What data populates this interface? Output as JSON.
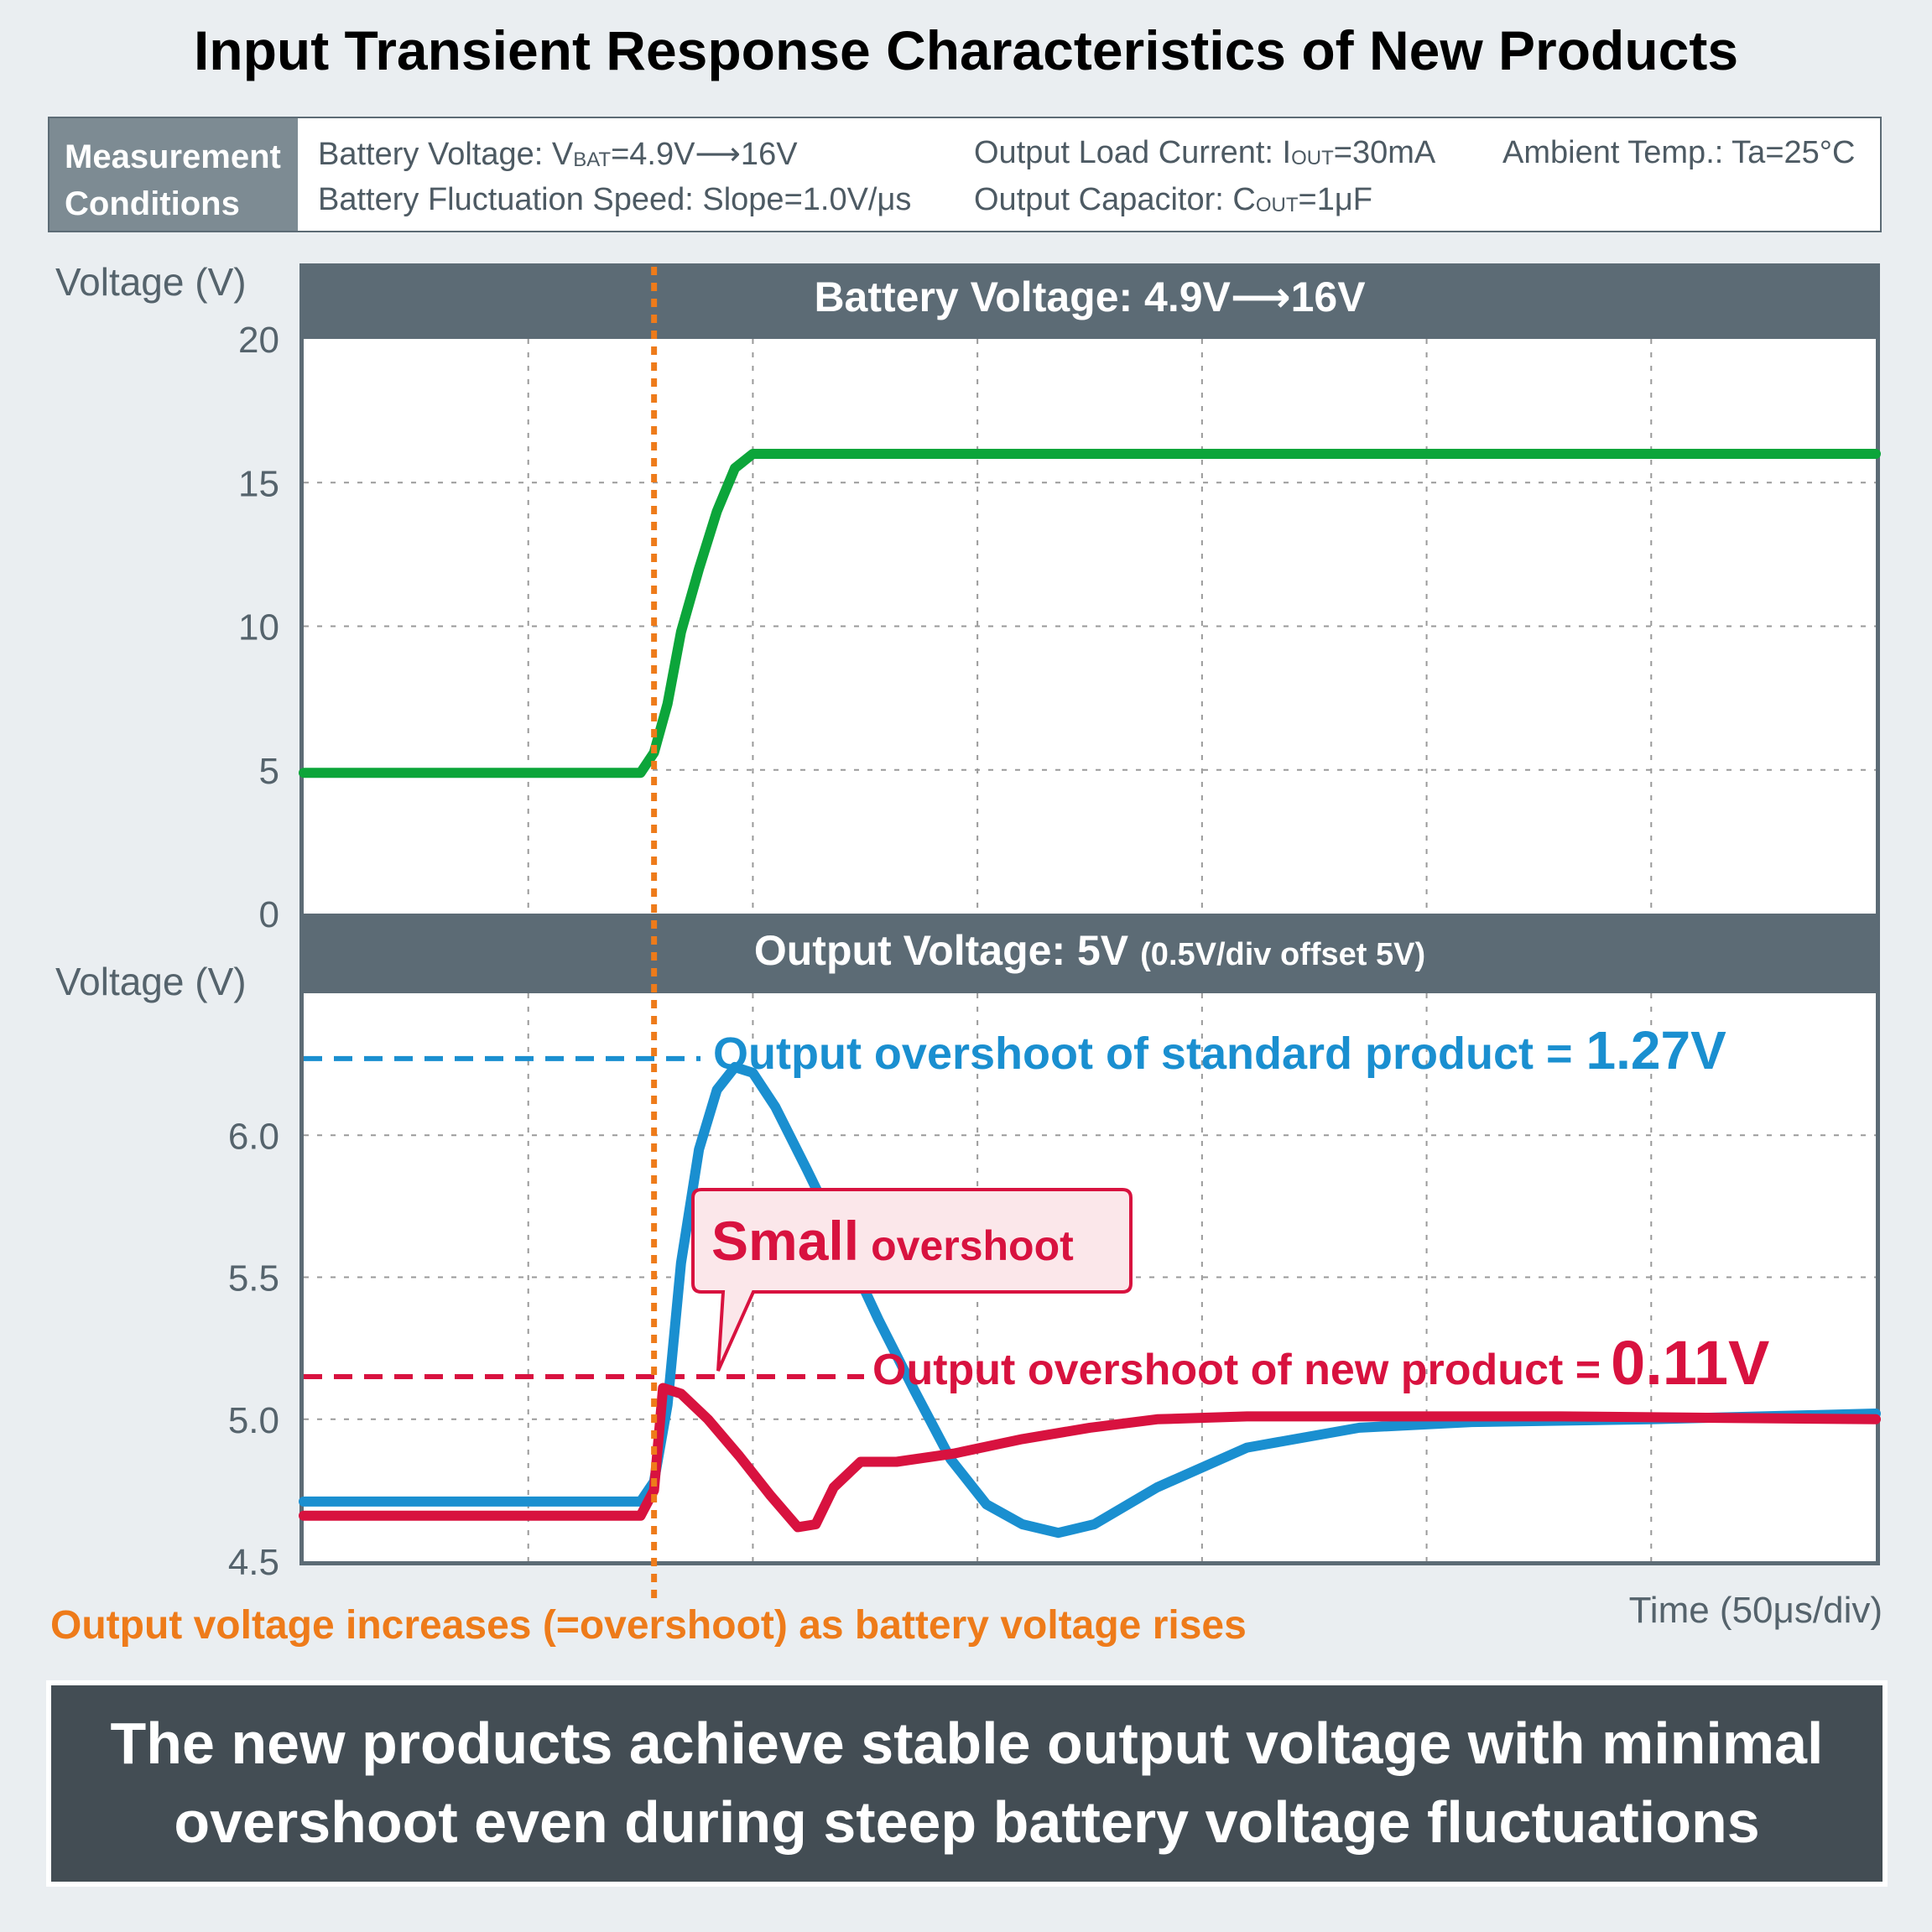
{
  "title": "Input Transient Response Characteristics of New Products",
  "conditions": {
    "header_line1": "Measurement",
    "header_line2": "Conditions",
    "battery_voltage_a": "Battery Voltage: V",
    "battery_voltage_sub": "BAT",
    "battery_voltage_b": "=4.9V⟶16V",
    "slope": "Battery Fluctuation Speed: Slope=1.0V/μs",
    "load_a": "Output Load Current: I",
    "load_sub": "OUT",
    "load_b": "=30mA",
    "cap_a": "Output Capacitor: C",
    "cap_sub": "OUT",
    "cap_b": "=1μF",
    "temp": "Ambient Temp.: Ta=25°C"
  },
  "chart_data": [
    {
      "type": "line",
      "panel_title": "Battery Voltage: 4.9V⟶16V",
      "ylabel": "Voltage (V)",
      "ylim": [
        0,
        20
      ],
      "yticks": [
        "0",
        "5",
        "10",
        "15",
        "20"
      ],
      "x_unit": "μs",
      "xlim": [
        0,
        350
      ],
      "grid": true,
      "series": [
        {
          "name": "Battery voltage",
          "color": "#0ca53a",
          "x": [
            0,
            75,
            78,
            81,
            84,
            88,
            92,
            96,
            100,
            350
          ],
          "y": [
            4.9,
            4.9,
            5.6,
            7.3,
            9.8,
            12.0,
            14.0,
            15.5,
            16.0,
            16.0
          ]
        }
      ]
    },
    {
      "type": "line",
      "panel_title": "Output Voltage: 5V",
      "panel_subtitle": "(0.5V/div offset 5V)",
      "ylabel": "Voltage (V)",
      "ylim": [
        4.5,
        6.5
      ],
      "yticks": [
        "4.5",
        "5.0",
        "5.5",
        "6.0"
      ],
      "xlabel": "Time (50μs/div)",
      "xlim": [
        0,
        350
      ],
      "grid": true,
      "series": [
        {
          "name": "Standard product",
          "color": "#1a8fd0",
          "x": [
            0,
            75,
            78,
            81,
            84,
            88,
            92,
            96,
            100,
            105,
            112,
            120,
            128,
            136,
            144,
            152,
            160,
            168,
            176,
            190,
            210,
            235,
            260,
            300,
            350
          ],
          "y": [
            4.71,
            4.71,
            4.78,
            5.05,
            5.55,
            5.95,
            6.16,
            6.24,
            6.22,
            6.1,
            5.88,
            5.62,
            5.35,
            5.1,
            4.86,
            4.7,
            4.63,
            4.6,
            4.63,
            4.76,
            4.9,
            4.97,
            4.99,
            5.0,
            5.02
          ]
        },
        {
          "name": "New product",
          "color": "#d8123f",
          "x": [
            0,
            75,
            78,
            80,
            84,
            90,
            97,
            104,
            110,
            114,
            118,
            124,
            132,
            145,
            160,
            175,
            190,
            210,
            240,
            280,
            350
          ],
          "y": [
            4.66,
            4.66,
            4.75,
            5.11,
            5.09,
            5.0,
            4.87,
            4.73,
            4.62,
            4.63,
            4.76,
            4.85,
            4.85,
            4.88,
            4.93,
            4.97,
            5.0,
            5.01,
            5.01,
            5.01,
            5.0
          ]
        }
      ],
      "annotations": {
        "standard": {
          "text": "Output overshoot of standard product =",
          "value_text": "1.27V",
          "level": 6.27
        },
        "new": {
          "text": "Output overshoot of new product =",
          "value_text": "0.11V",
          "level": 5.15
        },
        "callout_big": "Small",
        "callout_small": "overshoot"
      }
    }
  ],
  "event_note": "Output voltage increases (=overshoot) as battery voltage rises",
  "conclusion_line1": "The new products achieve stable output voltage with minimal",
  "conclusion_line2": "overshoot even during steep battery voltage fluctuations"
}
